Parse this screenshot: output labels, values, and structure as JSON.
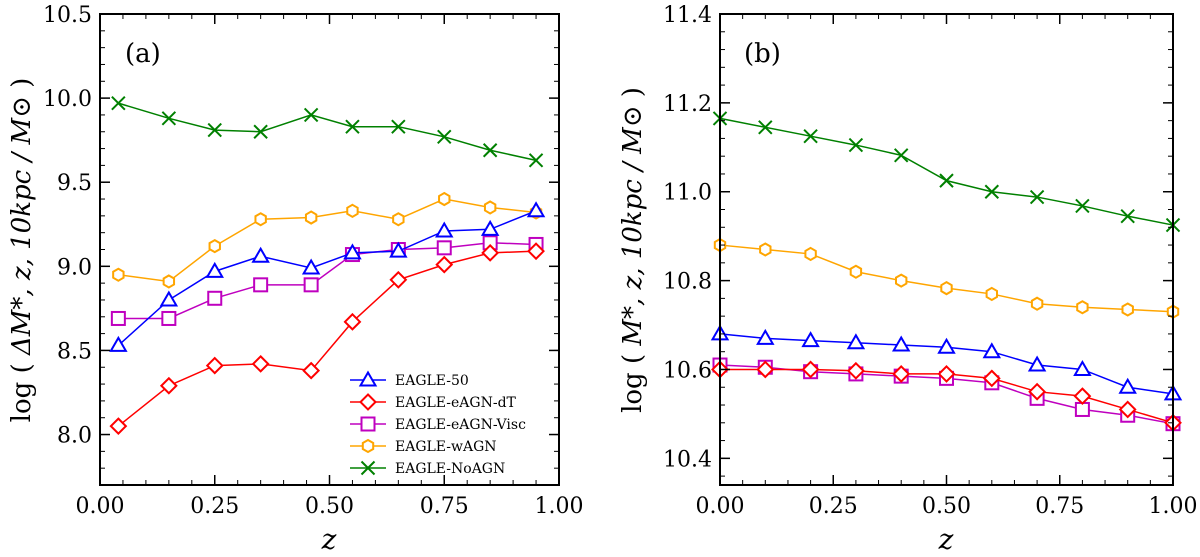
{
  "colors": {
    "EAGLE-50": "#0000ff",
    "EAGLE-eAGN-dT": "#ff0000",
    "EAGLE-eAGN-Visc": "#bf00bf",
    "EAGLE-wAGN": "#ffa500",
    "EAGLE-NoAGN": "#008000"
  },
  "chart_data": [
    {
      "type": "line",
      "panel_label": "(a)",
      "xlabel": "z",
      "ylabel_prefix": "log (",
      "ylabel_math": "ΔM*, z, 10kpc / M⊙",
      "ylabel_suffix": ")",
      "xlim": [
        0.0,
        1.0
      ],
      "ylim": [
        7.7,
        10.5
      ],
      "xticks": [
        "0.00",
        "0.25",
        "0.50",
        "0.75",
        "1.00"
      ],
      "yticks": [
        "8.0",
        "8.5",
        "9.0",
        "9.5",
        "10.0",
        "10.5"
      ],
      "x": [
        0.04,
        0.15,
        0.25,
        0.35,
        0.46,
        0.55,
        0.65,
        0.75,
        0.85,
        0.95
      ],
      "legend_position": "lower-right",
      "series": [
        {
          "name": "EAGLE-50",
          "marker": "triangle",
          "values": [
            8.53,
            8.8,
            8.97,
            9.06,
            8.99,
            9.08,
            9.09,
            9.21,
            9.22,
            9.33
          ]
        },
        {
          "name": "EAGLE-eAGN-dT",
          "marker": "diamond",
          "values": [
            8.05,
            8.29,
            8.41,
            8.42,
            8.38,
            8.67,
            8.92,
            9.01,
            9.08,
            9.09
          ]
        },
        {
          "name": "EAGLE-eAGN-Visc",
          "marker": "square",
          "values": [
            8.69,
            8.69,
            8.81,
            8.89,
            8.89,
            9.07,
            9.1,
            9.11,
            9.14,
            9.13
          ]
        },
        {
          "name": "EAGLE-wAGN",
          "marker": "hexagon",
          "values": [
            8.95,
            8.91,
            9.12,
            9.28,
            9.29,
            9.33,
            9.28,
            9.4,
            9.35,
            9.32
          ]
        },
        {
          "name": "EAGLE-NoAGN",
          "marker": "x",
          "values": [
            9.97,
            9.88,
            9.81,
            9.8,
            9.9,
            9.83,
            9.83,
            9.77,
            9.69,
            9.63
          ]
        }
      ]
    },
    {
      "type": "line",
      "panel_label": "(b)",
      "xlabel": "z",
      "ylabel_prefix": "log (",
      "ylabel_math": "M*, z, 10kpc / M⊙",
      "ylabel_suffix": ")",
      "xlim": [
        0.0,
        1.0
      ],
      "ylim": [
        10.34,
        11.4
      ],
      "xticks": [
        "0.00",
        "0.25",
        "0.50",
        "0.75",
        "1.00"
      ],
      "yticks": [
        "10.4",
        "10.6",
        "10.8",
        "11.0",
        "11.2",
        "11.4"
      ],
      "x": [
        0.0,
        0.1,
        0.2,
        0.3,
        0.4,
        0.5,
        0.6,
        0.7,
        0.8,
        0.9,
        1.0
      ],
      "series": [
        {
          "name": "EAGLE-50",
          "marker": "triangle",
          "values": [
            10.68,
            10.67,
            10.665,
            10.66,
            10.655,
            10.65,
            10.64,
            10.61,
            10.6,
            10.56,
            10.545
          ]
        },
        {
          "name": "EAGLE-eAGN-dT",
          "marker": "diamond",
          "values": [
            10.6,
            10.6,
            10.6,
            10.597,
            10.59,
            10.59,
            10.58,
            10.55,
            10.54,
            10.51,
            10.48
          ]
        },
        {
          "name": "EAGLE-eAGN-Visc",
          "marker": "square",
          "values": [
            10.61,
            10.605,
            10.595,
            10.59,
            10.585,
            10.58,
            10.57,
            10.535,
            10.51,
            10.497,
            10.478
          ]
        },
        {
          "name": "EAGLE-wAGN",
          "marker": "hexagon",
          "values": [
            10.88,
            10.87,
            10.86,
            10.82,
            10.8,
            10.783,
            10.77,
            10.748,
            10.74,
            10.735,
            10.73
          ]
        },
        {
          "name": "EAGLE-NoAGN",
          "marker": "x",
          "values": [
            11.165,
            11.145,
            11.125,
            11.105,
            11.082,
            11.025,
            11.0,
            10.988,
            10.968,
            10.945,
            10.925
          ]
        }
      ]
    }
  ]
}
